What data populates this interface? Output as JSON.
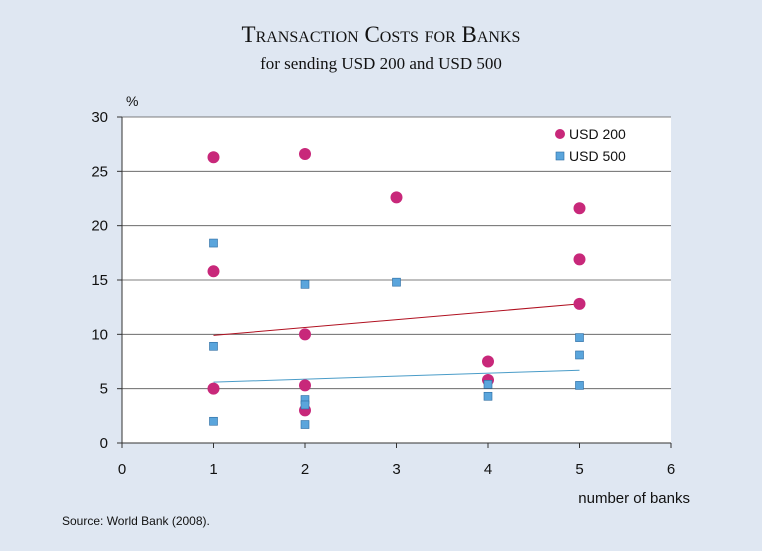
{
  "chart_data": {
    "type": "scatter",
    "title": "Transaction Costs for Banks",
    "subtitle": "for sending USD 200 and USD 500",
    "xlabel": "number of banks",
    "ylabel": "%",
    "xlim": [
      0,
      6
    ],
    "ylim": [
      0,
      30
    ],
    "xticks": [
      0,
      1,
      2,
      3,
      4,
      5,
      6
    ],
    "yticks": [
      0,
      5,
      10,
      15,
      20,
      25,
      30
    ],
    "grid": "horizontal",
    "legend_position": "top-right",
    "series": [
      {
        "name": "USD 200",
        "marker": "circle",
        "color": "#c8287a",
        "points": [
          [
            1,
            26.3
          ],
          [
            1,
            15.8
          ],
          [
            1,
            5.0
          ],
          [
            2,
            26.6
          ],
          [
            2,
            10.0
          ],
          [
            2,
            5.3
          ],
          [
            2,
            3.0
          ],
          [
            3,
            22.6
          ],
          [
            4,
            7.5
          ],
          [
            4,
            5.8
          ],
          [
            5,
            21.6
          ],
          [
            5,
            16.9
          ],
          [
            5,
            12.8
          ]
        ],
        "trend": {
          "type": "linear",
          "from": [
            1,
            9.9
          ],
          "to": [
            5,
            12.8
          ],
          "color": "#b01020"
        }
      },
      {
        "name": "USD 500",
        "marker": "square",
        "color": "#5aa5dc",
        "points": [
          [
            1,
            18.4
          ],
          [
            1,
            8.9
          ],
          [
            1,
            2.0
          ],
          [
            2,
            14.6
          ],
          [
            2,
            4.0
          ],
          [
            2,
            3.5
          ],
          [
            2,
            1.7
          ],
          [
            3,
            14.8
          ],
          [
            4,
            5.4
          ],
          [
            4,
            4.3
          ],
          [
            5,
            9.7
          ],
          [
            5,
            8.1
          ],
          [
            5,
            5.3
          ]
        ],
        "trend": {
          "type": "linear",
          "from": [
            1,
            5.6
          ],
          "to": [
            5,
            6.7
          ],
          "color": "#4a9cc8"
        }
      }
    ]
  },
  "source": "Source: World Bank (2008)."
}
